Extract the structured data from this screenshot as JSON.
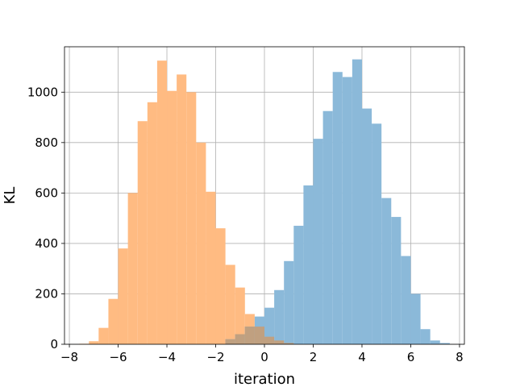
{
  "chart_data": {
    "type": "bar",
    "title": "",
    "xlabel": "iteration",
    "ylabel": "KL",
    "xlim": [
      -8.2,
      8.2
    ],
    "ylim": [
      0,
      1180
    ],
    "xticks": [
      -8,
      -6,
      -4,
      -2,
      0,
      2,
      4,
      6,
      8
    ],
    "yticks": [
      0,
      200,
      400,
      600,
      800,
      1000
    ],
    "grid": true,
    "legend": "none",
    "bin_width": 0.4,
    "series": [
      {
        "color": "#ffbb82",
        "bin_start": -7.6,
        "counts": [
          2,
          12,
          65,
          180,
          380,
          600,
          885,
          960,
          1125,
          1005,
          1070,
          1000,
          800,
          605,
          460,
          315,
          225,
          120,
          70,
          30,
          15,
          5
        ]
      },
      {
        "color": "#8bb9d9",
        "bin_start": -1.6,
        "counts": [
          20,
          40,
          70,
          110,
          145,
          215,
          330,
          470,
          630,
          815,
          925,
          1080,
          1060,
          1130,
          935,
          875,
          580,
          505,
          350,
          200,
          60,
          15,
          5
        ]
      }
    ],
    "overlap_color": "#c0a080"
  },
  "x_tick_labels": [
    "−8",
    "−6",
    "−4",
    "−2",
    "0",
    "2",
    "4",
    "6",
    "8"
  ],
  "y_tick_labels": [
    "0",
    "200",
    "400",
    "600",
    "800",
    "1000"
  ]
}
